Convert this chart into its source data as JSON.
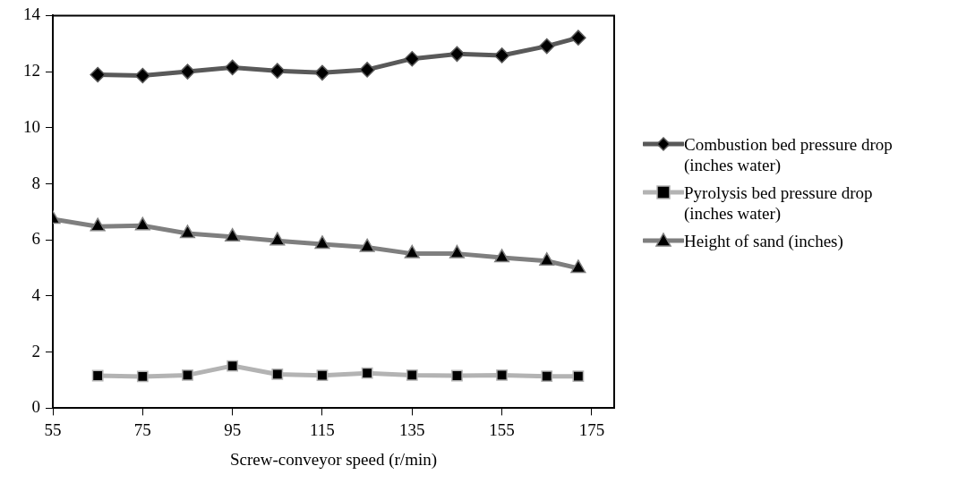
{
  "chart_data": {
    "type": "line",
    "xlabel": "Screw-conveyor speed (r/min)",
    "xlim": [
      55,
      180
    ],
    "xticks": [
      55,
      75,
      95,
      115,
      135,
      155,
      175
    ],
    "ylim": [
      0,
      14
    ],
    "yticks": [
      0,
      2,
      4,
      6,
      8,
      10,
      12,
      14
    ],
    "grid": false,
    "legend": "right",
    "line_style": "solid",
    "series": [
      {
        "name": "Combustion bed pressure drop (inches water)",
        "color": "#595959",
        "marker": "diamond",
        "x": [
          65,
          75,
          85,
          95,
          105,
          115,
          125,
          135,
          145,
          155,
          165,
          172
        ],
        "values": [
          11.89,
          11.86,
          12.0,
          12.15,
          12.03,
          11.96,
          12.07,
          12.46,
          12.63,
          12.58,
          12.91,
          13.21
        ]
      },
      {
        "name": "Pyrolysis bed pressure drop (inches water)",
        "color": "#b3b3b3",
        "marker": "square",
        "x": [
          65,
          75,
          85,
          95,
          105,
          115,
          125,
          135,
          145,
          155,
          165,
          172
        ],
        "values": [
          1.16,
          1.13,
          1.18,
          1.51,
          1.21,
          1.17,
          1.25,
          1.18,
          1.16,
          1.18,
          1.14,
          1.14
        ]
      },
      {
        "name": "Height of sand (inches)",
        "color": "#7f7f7f",
        "marker": "triangle",
        "x": [
          55,
          65,
          75,
          85,
          95,
          105,
          115,
          125,
          135,
          145,
          155,
          165,
          172
        ],
        "values": [
          6.74,
          6.48,
          6.51,
          6.23,
          6.11,
          5.97,
          5.85,
          5.74,
          5.51,
          5.51,
          5.37,
          5.25,
          4.99
        ]
      }
    ]
  }
}
